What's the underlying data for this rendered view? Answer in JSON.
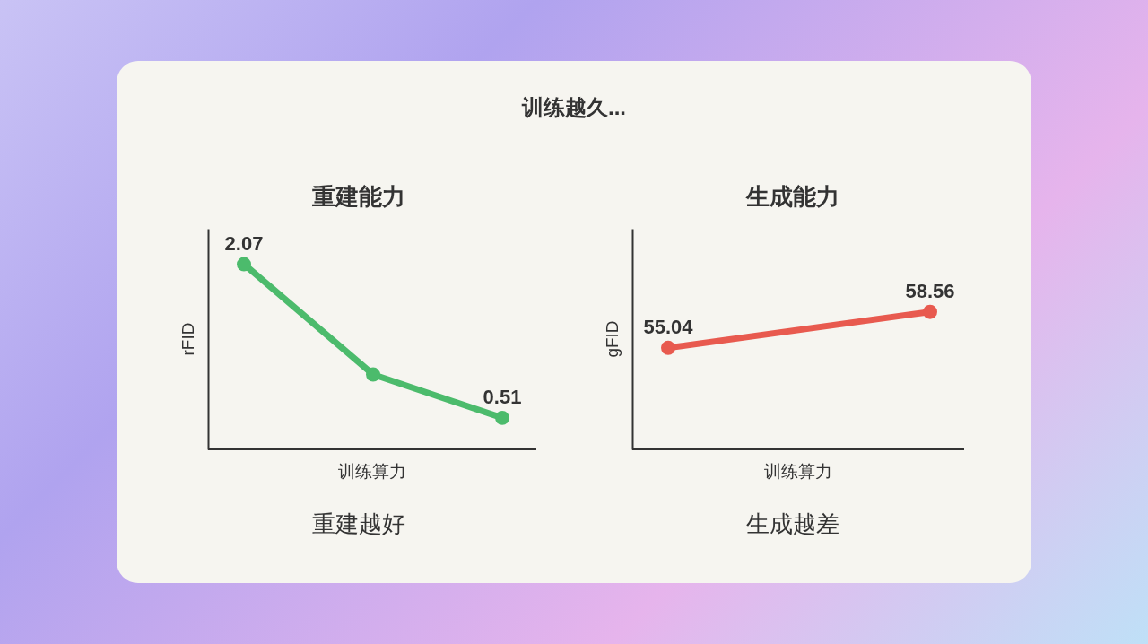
{
  "chart_data": [
    {
      "type": "line",
      "title": "重建能力",
      "xlabel": "训练算力",
      "ylabel": "rFID",
      "categories": [
        null,
        null,
        null
      ],
      "series": [
        {
          "color": "#4cbb6c",
          "values": [
            2.07,
            0.95,
            0.51
          ],
          "value_labels": [
            "2.07",
            null,
            "0.51"
          ]
        }
      ],
      "ylim": [
        0.19,
        2.43
      ],
      "marker": "circle",
      "line_style": "solid",
      "annotations": [
        "训练越久...",
        "重建越好"
      ]
    },
    {
      "type": "line",
      "title": "生成能力",
      "xlabel": "训练算力",
      "ylabel": "gFID",
      "categories": [
        null,
        null
      ],
      "series": [
        {
          "color": "#e85a4f",
          "values": [
            55.04,
            58.56
          ],
          "value_labels": [
            "55.04",
            "58.56"
          ]
        }
      ],
      "ylim": [
        45.1,
        66.7
      ],
      "marker": "circle",
      "line_style": "solid",
      "annotations": [
        "生成越差"
      ]
    }
  ]
}
